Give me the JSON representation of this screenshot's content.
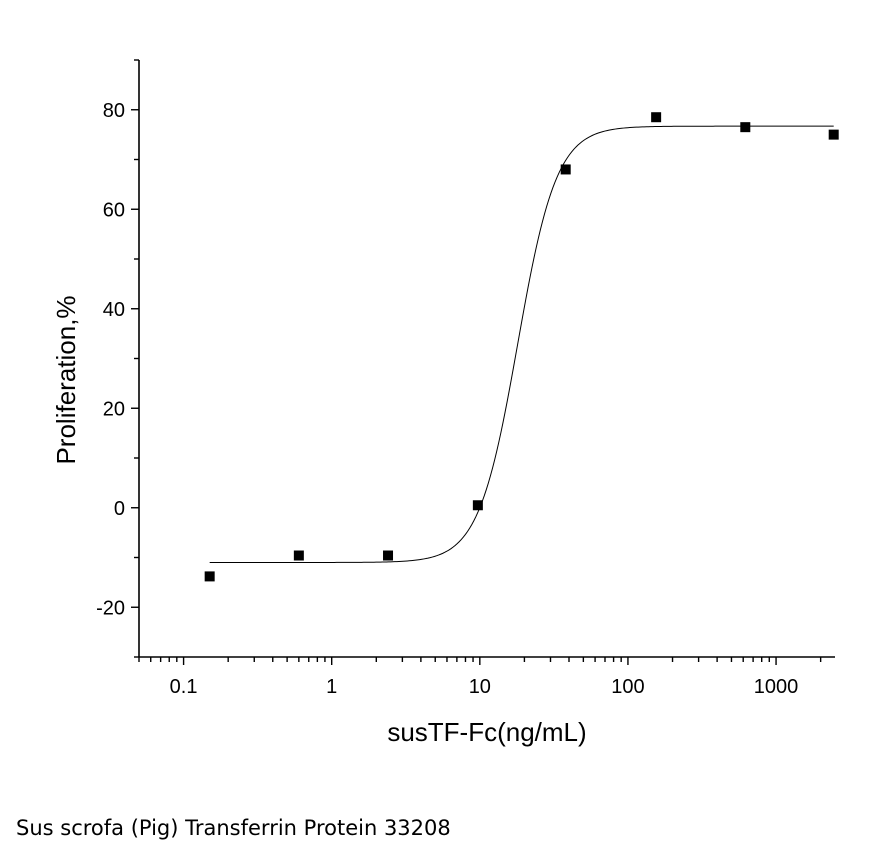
{
  "caption": "Sus scrofa (Pig) Transferrin Protein 33208",
  "chart_data": {
    "type": "scatter",
    "title": "",
    "xlabel": "susTF-Fc(ng/mL)",
    "ylabel": "Proliferation,%",
    "xscale": "log",
    "xlim": [
      0.05,
      2500
    ],
    "ylim": [
      -30,
      90
    ],
    "xticks": [
      0.1,
      1,
      10,
      100,
      1000
    ],
    "xtick_labels": [
      "0.1",
      "1",
      "10",
      "100",
      "1000"
    ],
    "yticks": [
      -20,
      0,
      20,
      40,
      60,
      80
    ],
    "ytick_labels": [
      "-20",
      "0",
      "20",
      "40",
      "60",
      "80"
    ],
    "grid": false,
    "legend": "none",
    "marker": "filled-square",
    "series": [
      {
        "points": [
          {
            "x": 0.15,
            "y": -13.8
          },
          {
            "x": 0.6,
            "y": -9.6
          },
          {
            "x": 2.4,
            "y": -9.6
          },
          {
            "x": 9.7,
            "y": 0.5
          },
          {
            "x": 38,
            "y": 68
          },
          {
            "x": 155,
            "y": 78.5
          },
          {
            "x": 620,
            "y": 76.5
          },
          {
            "x": 2450,
            "y": 75
          }
        ]
      }
    ],
    "fit": {
      "type": "logistic",
      "bottom": -11,
      "top": 76.7,
      "ec50": 18,
      "hill": 3.3,
      "x_range": [
        0.15,
        2450
      ]
    }
  }
}
